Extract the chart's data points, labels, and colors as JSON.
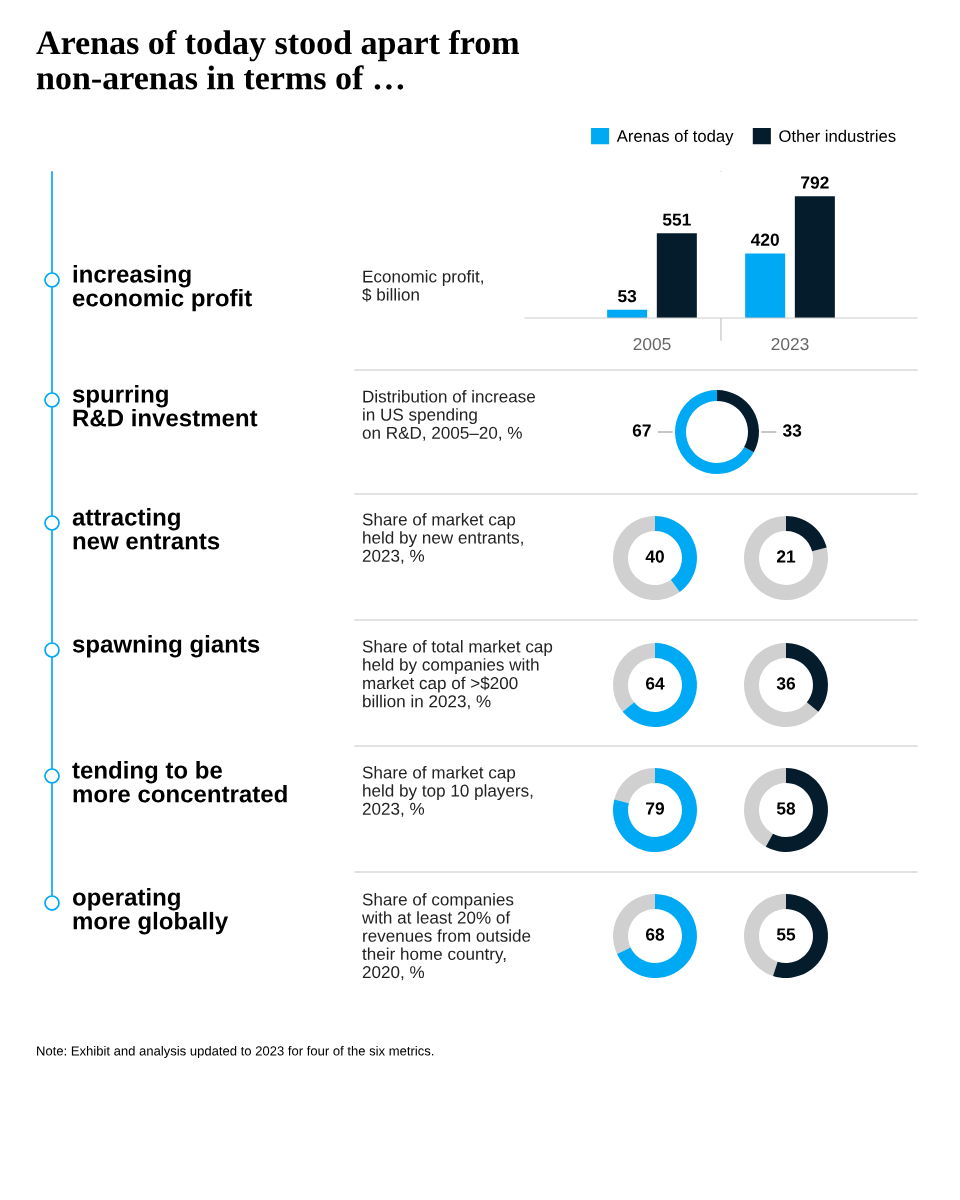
{
  "chart_data": [
    {
      "type": "other",
      "title": "Arenas of today stood apart from\nnon-arenas in terms of …"
    },
    {
      "type": "bar",
      "ylabel": "increasing\neconomic profit",
      "subtitle": "Economic profit,\n$ billion",
      "categories": [
        "2005",
        "2023"
      ],
      "series": [
        {
          "name": "Arenas of today",
          "color": "#00a9f4",
          "values": [
            53,
            420
          ]
        },
        {
          "name": "Other industries",
          "color": "#051c2c",
          "values": [
            551,
            792
          ]
        }
      ],
      "data_labels": true,
      "legend": "top right",
      "tick_labels": "x"
    },
    {
      "type": "donut",
      "ylabel": "spurring\nR&D investment",
      "subtitle": "Distribution of increase\nin US spending\non R&D, 2005–20, %",
      "categories": [
        null,
        null
      ],
      "values": [
        67,
        33
      ],
      "colors": [
        "#00a9f4",
        "#051c2c"
      ],
      "value_labels": [
        "67",
        "33"
      ]
    },
    {
      "type": "donut",
      "ylabel": "attracting\nnew entrants",
      "subtitle": "Share of market cap\nheld by new entrants,\n2023, %",
      "categories": [
        null,
        null
      ],
      "values": [
        60,
        40
      ],
      "colors": [
        "#d0d0d0",
        "#00a9f4"
      ],
      "value_labels": [
        null,
        "40"
      ]
    },
    {
      "type": "donut",
      "categories": [
        null,
        null
      ],
      "values": [
        79,
        21
      ],
      "colors": [
        "#d0d0d0",
        "#051c2c"
      ],
      "value_labels": [
        null,
        "21"
      ]
    },
    {
      "type": "donut",
      "ylabel": "spawning giants",
      "subtitle": "Share of total market cap\nheld by companies with\nmarket cap of >$200\nbillion in 2023, %",
      "categories": [
        null,
        null
      ],
      "values": [
        36,
        64
      ],
      "colors": [
        "#d0d0d0",
        "#00a9f4"
      ],
      "value_labels": [
        null,
        "64"
      ]
    },
    {
      "type": "donut",
      "categories": [
        null,
        null
      ],
      "values": [
        64,
        36
      ],
      "colors": [
        "#d0d0d0",
        "#051c2c"
      ],
      "value_labels": [
        null,
        "36"
      ]
    },
    {
      "type": "donut",
      "ylabel": "tending to be\nmore concentrated",
      "subtitle": "Share of market cap\nheld by top 10 players,\n2023, %",
      "categories": [
        null,
        null
      ],
      "values": [
        21,
        79
      ],
      "colors": [
        "#d0d0d0",
        "#00a9f4"
      ],
      "value_labels": [
        null,
        "79"
      ]
    },
    {
      "type": "donut",
      "categories": [
        null,
        null
      ],
      "values": [
        42,
        58
      ],
      "colors": [
        "#d0d0d0",
        "#051c2c"
      ],
      "value_labels": [
        null,
        "58"
      ]
    },
    {
      "type": "donut",
      "ylabel": "operating\nmore globally",
      "subtitle": "Share of companies\nwith at least 20% of\nrevenues from outside\ntheir home country,\n2020, %",
      "categories": [
        null,
        null
      ],
      "values": [
        32,
        68
      ],
      "colors": [
        "#d0d0d0",
        "#00a9f4"
      ],
      "value_labels": [
        null,
        "68"
      ]
    },
    {
      "type": "donut",
      "categories": [
        null,
        null
      ],
      "values": [
        45,
        55
      ],
      "colors": [
        "#d0d0d0",
        "#051c2c"
      ],
      "value_labels": [
        null,
        "55"
      ]
    },
    {
      "type": "other",
      "annotations": [
        "Note: Exhibit and analysis updated to 2023 for four of the six metrics."
      ]
    }
  ]
}
